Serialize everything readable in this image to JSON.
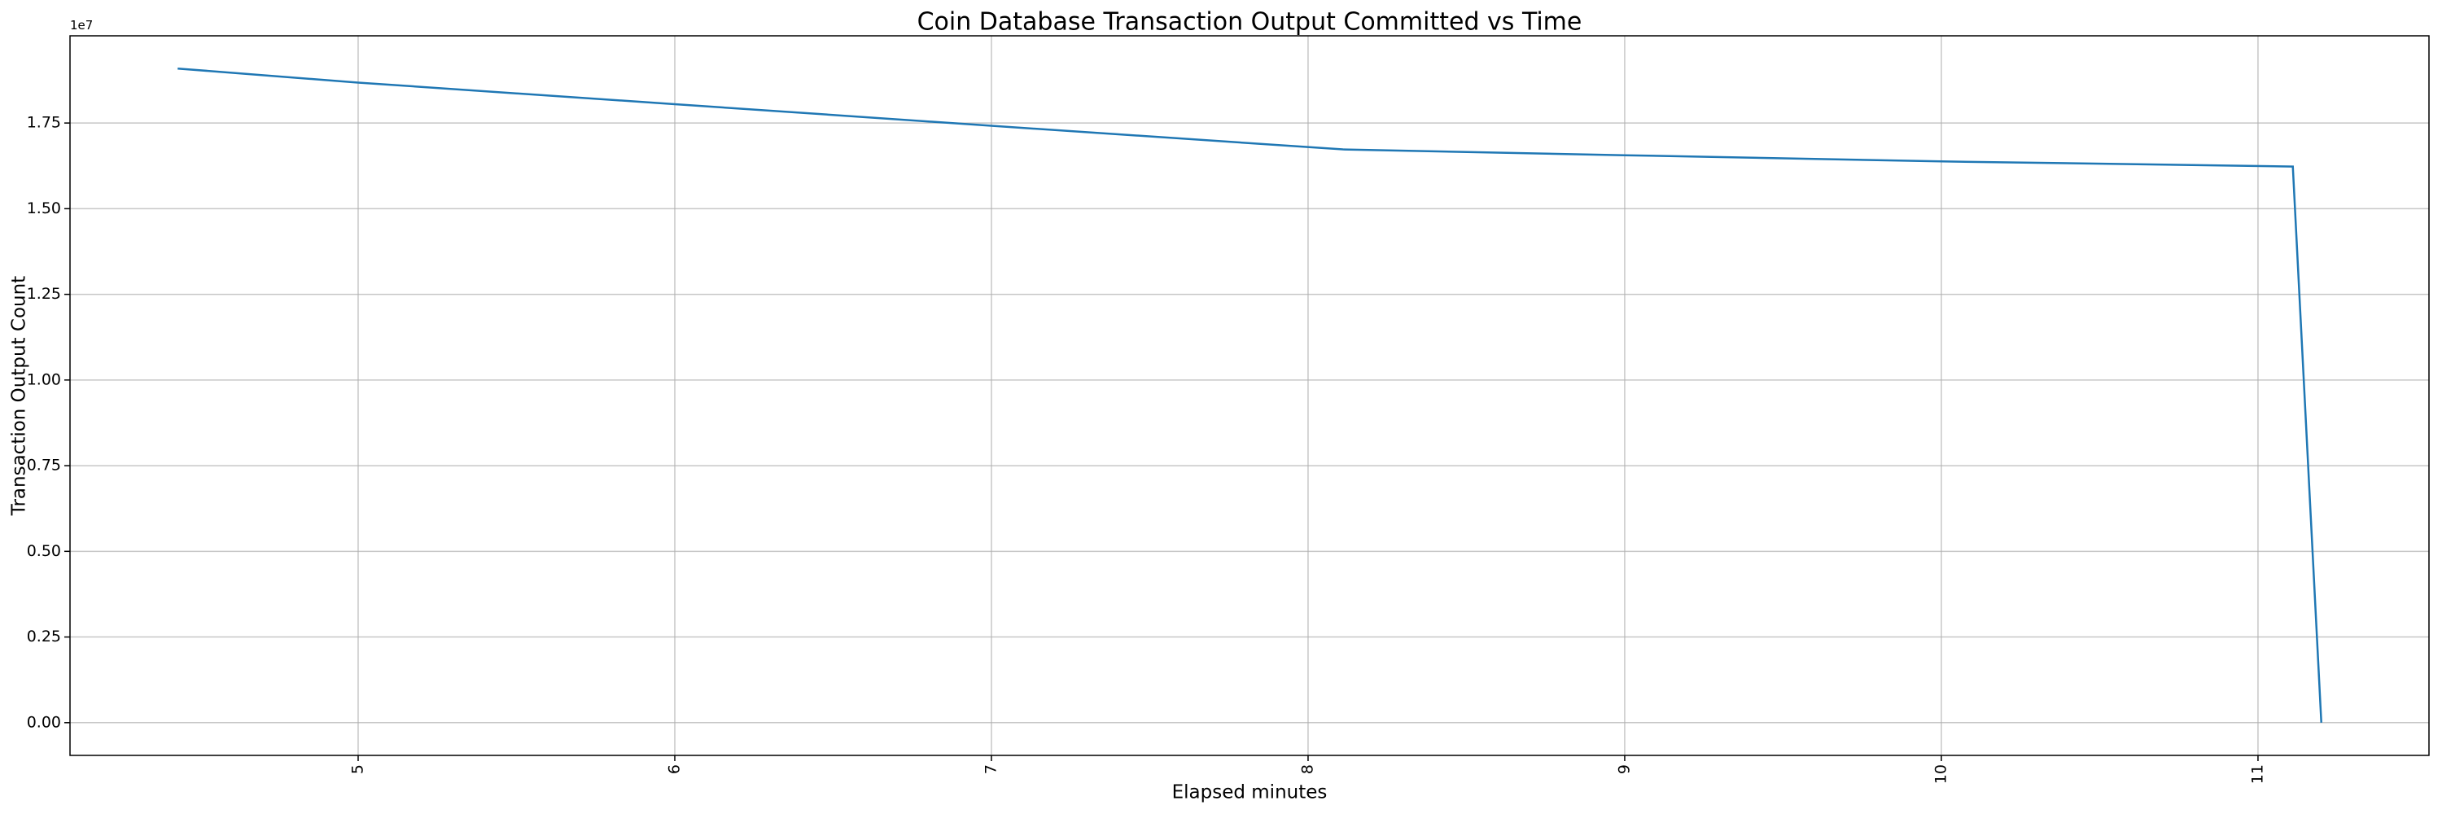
{
  "chart_data": {
    "type": "line",
    "title": "Coin Database Transaction Output Committed vs Time",
    "x_label": "Elapsed minutes",
    "y_label": "Transaction Output Count",
    "y_offset_label": "1e7",
    "series": [
      {
        "name": "Transaction Output Count",
        "color": "#1f77b4",
        "x": [
          4.43,
          5.0,
          6.0,
          7.0,
          8.11,
          9.0,
          10.0,
          11.11,
          11.2
        ],
        "values": [
          19090000,
          18680000,
          18050000,
          17420000,
          16730000,
          16560000,
          16380000,
          16230000,
          0
        ]
      }
    ],
    "xlim": [
      4.09,
      11.54
    ],
    "xticks": [
      5,
      6,
      7,
      8,
      9,
      10,
      11
    ],
    "ylim": [
      -955000,
      20045000
    ],
    "yticks": [
      {
        "value": 0,
        "label": "0.00"
      },
      {
        "value": 2500000,
        "label": "0.25"
      },
      {
        "value": 5000000,
        "label": "0.50"
      },
      {
        "value": 7500000,
        "label": "0.75"
      },
      {
        "value": 10000000,
        "label": "1.00"
      },
      {
        "value": 12500000,
        "label": "1.25"
      },
      {
        "value": 15000000,
        "label": "1.50"
      },
      {
        "value": 17500000,
        "label": "1.75"
      }
    ],
    "grid": true
  }
}
